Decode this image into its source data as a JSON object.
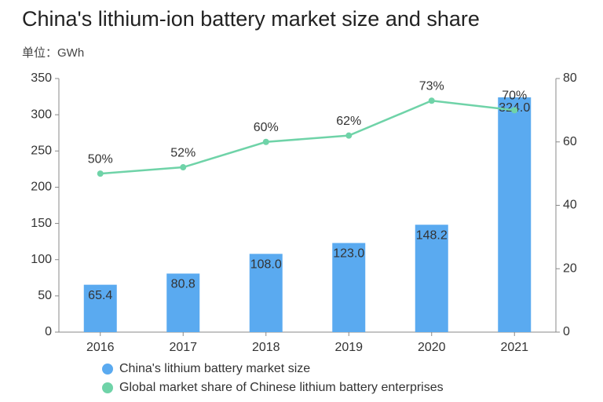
{
  "chart_data": {
    "type": "bar",
    "title": "China's lithium-ion battery market size and share",
    "subtitle": "单位：GWh",
    "categories": [
      "2016",
      "2017",
      "2018",
      "2019",
      "2020",
      "2021"
    ],
    "series": [
      {
        "name": "China's lithium battery market size",
        "color": "#5aaaf0",
        "type": "bar",
        "values": [
          65.4,
          80.8,
          108.0,
          123.0,
          148.2,
          324.0
        ],
        "value_labels": [
          "65.4",
          "80.8",
          "108.0",
          "123.0",
          "148.2",
          "324.0"
        ]
      },
      {
        "name": "Global market share of Chinese lithium battery enterprises",
        "color": "#6fd3a8",
        "type": "line",
        "axis": "y2",
        "values": [
          50,
          52,
          60,
          62,
          73,
          70
        ],
        "value_labels": [
          "50%",
          "52%",
          "60%",
          "62%",
          "73%",
          "70%"
        ]
      }
    ],
    "ylim": [
      0,
      350
    ],
    "yticks": [
      0,
      50,
      100,
      150,
      200,
      250,
      300,
      350
    ],
    "y2lim": [
      0,
      80
    ],
    "y2ticks": [
      0,
      20,
      40,
      60,
      80
    ],
    "grid": false,
    "legend": "bottom"
  }
}
